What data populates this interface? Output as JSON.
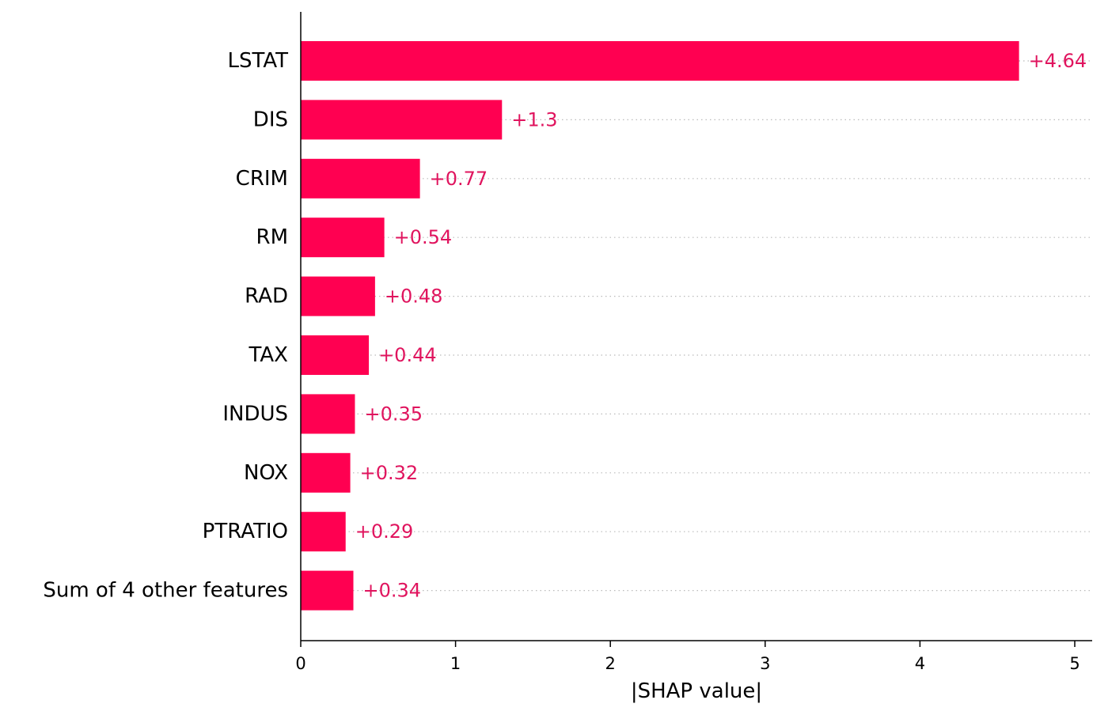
{
  "chart_data": {
    "type": "bar",
    "orientation": "horizontal",
    "categories": [
      "LSTAT",
      "DIS",
      "CRIM",
      "RM",
      "RAD",
      "TAX",
      "INDUS",
      "NOX",
      "PTRATIO",
      "Sum of 4 other features"
    ],
    "values": [
      4.64,
      1.3,
      0.77,
      0.54,
      0.48,
      0.44,
      0.35,
      0.32,
      0.29,
      0.34
    ],
    "value_labels": [
      "+4.64",
      "+1.3",
      "+0.77",
      "+0.54",
      "+0.48",
      "+0.44",
      "+0.35",
      "+0.32",
      "+0.29",
      "+0.34"
    ],
    "xlabel": "|SHAP value|",
    "xlim": [
      0,
      5.1
    ],
    "xticks": [
      0,
      1,
      2,
      3,
      4,
      5
    ],
    "xtick_labels": [
      "0",
      "1",
      "2",
      "3",
      "4",
      "5"
    ],
    "grid": "dotted horizontal guide lines per bar",
    "colors": {
      "bar": "#ff0051",
      "value_label": "#e0145e",
      "axis": "#000000",
      "guide": "#bbbbbb"
    }
  }
}
